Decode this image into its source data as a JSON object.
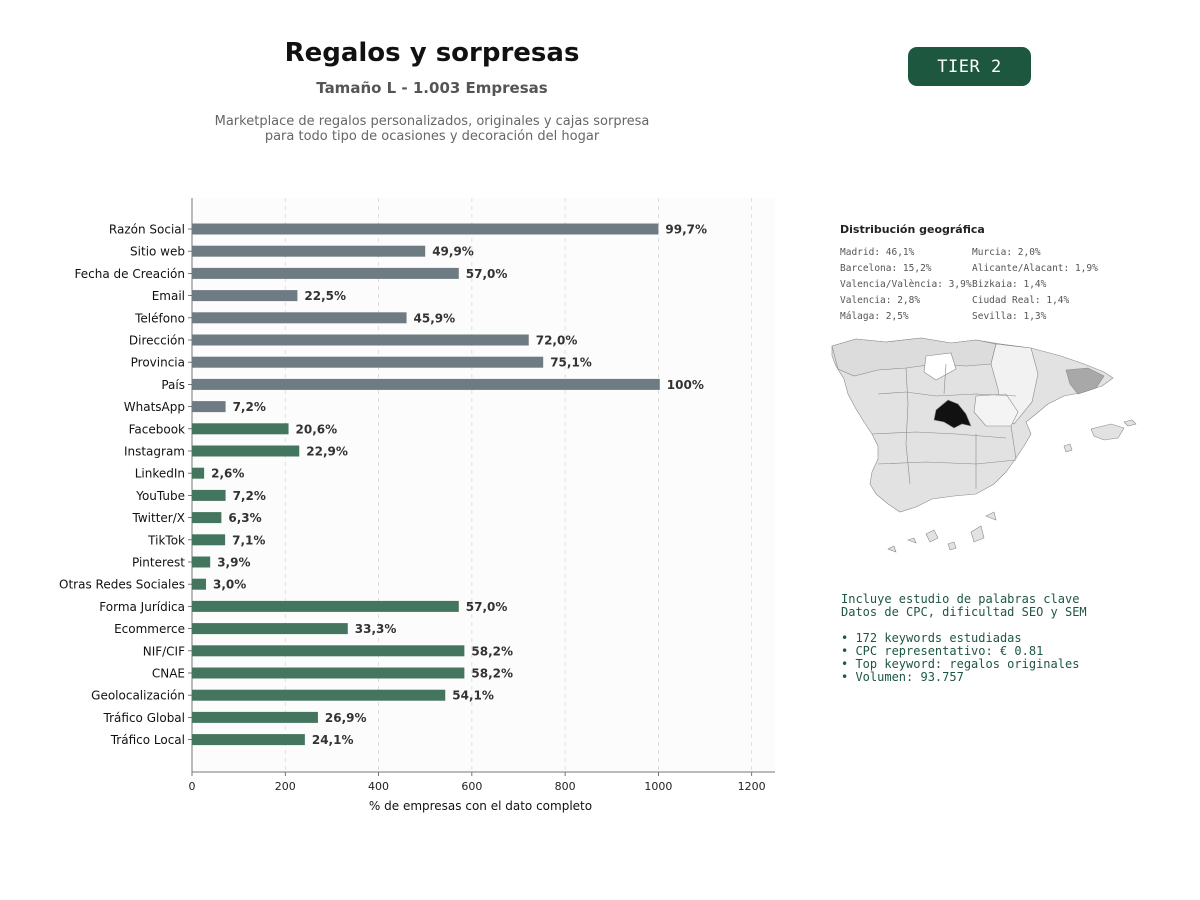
{
  "header": {
    "title": "Regalos y sorpresas",
    "subtitle": "Tamaño L - 1.003 Empresas",
    "description_line1": "Marketplace de regalos personalizados, originales y cajas sorpresa",
    "description_line2": "para todo tipo de ocasiones y decoración del hogar",
    "tier_badge": "TIER 2"
  },
  "colors": {
    "basic_bar": "#6e7b83",
    "social_bar": "#44765f",
    "badge": "#1e5740"
  },
  "chart_data": {
    "type": "bar",
    "orientation": "horizontal",
    "xlabel": "% de empresas con el dato completo",
    "xlim": [
      0,
      1250
    ],
    "xticks": [
      0,
      200,
      400,
      600,
      800,
      1000,
      1200
    ],
    "grid": true,
    "categories": [
      "Razón Social",
      "Sitio web",
      "Fecha de Creación",
      "Email",
      "Teléfono",
      "Dirección",
      "Provincia",
      "País",
      "WhatsApp",
      "Facebook",
      "Instagram",
      "LinkedIn",
      "YouTube",
      "Twitter/X",
      "TikTok",
      "Pinterest",
      "Otras Redes Sociales",
      "Forma Jurídica",
      "Ecommerce",
      "NIF/CIF",
      "CNAE",
      "Geolocalización",
      "Tráfico Global",
      "Tráfico Local"
    ],
    "values": [
      1000,
      500,
      572,
      226,
      460,
      722,
      753,
      1003,
      72,
      207,
      230,
      26,
      72,
      63,
      71,
      39,
      30,
      572,
      334,
      584,
      584,
      543,
      270,
      242
    ],
    "data_labels": [
      "99,7%",
      "49,9%",
      "57,0%",
      "22,5%",
      "45,9%",
      "72,0%",
      "75,1%",
      "100%",
      "7,2%",
      "20,6%",
      "22,9%",
      "2,6%",
      "7,2%",
      "6,3%",
      "7,1%",
      "3,9%",
      "3,0%",
      "57,0%",
      "33,3%",
      "58,2%",
      "58,2%",
      "54,1%",
      "26,9%",
      "24,1%"
    ],
    "bar_group": [
      "basic",
      "basic",
      "basic",
      "basic",
      "basic",
      "basic",
      "basic",
      "basic",
      "basic",
      "social",
      "social",
      "social",
      "social",
      "social",
      "social",
      "social",
      "social",
      "social",
      "social",
      "social",
      "social",
      "social",
      "social",
      "social"
    ]
  },
  "geo": {
    "title": "Distribución geográfica",
    "items": [
      "Madrid: 46,1%",
      "Barcelona: 15,2%",
      "Valencia/València: 3,9%",
      "Valencia: 2,8%",
      "Málaga: 2,5%",
      "Murcia: 2,0%",
      "Alicante/Alacant: 1,9%",
      "Bizkaia: 1,4%",
      "Ciudad Real: 1,4%",
      "Sevilla: 1,3%"
    ]
  },
  "keywords": {
    "line1": "Incluye estudio de palabras clave",
    "line2": "Datos de CPC, dificultad SEO y SEM",
    "bullets": [
      "• 172 keywords estudiadas",
      "• CPC representativo: € 0.81",
      "• Top keyword: regalos originales",
      "• Volumen: 93.757"
    ]
  }
}
